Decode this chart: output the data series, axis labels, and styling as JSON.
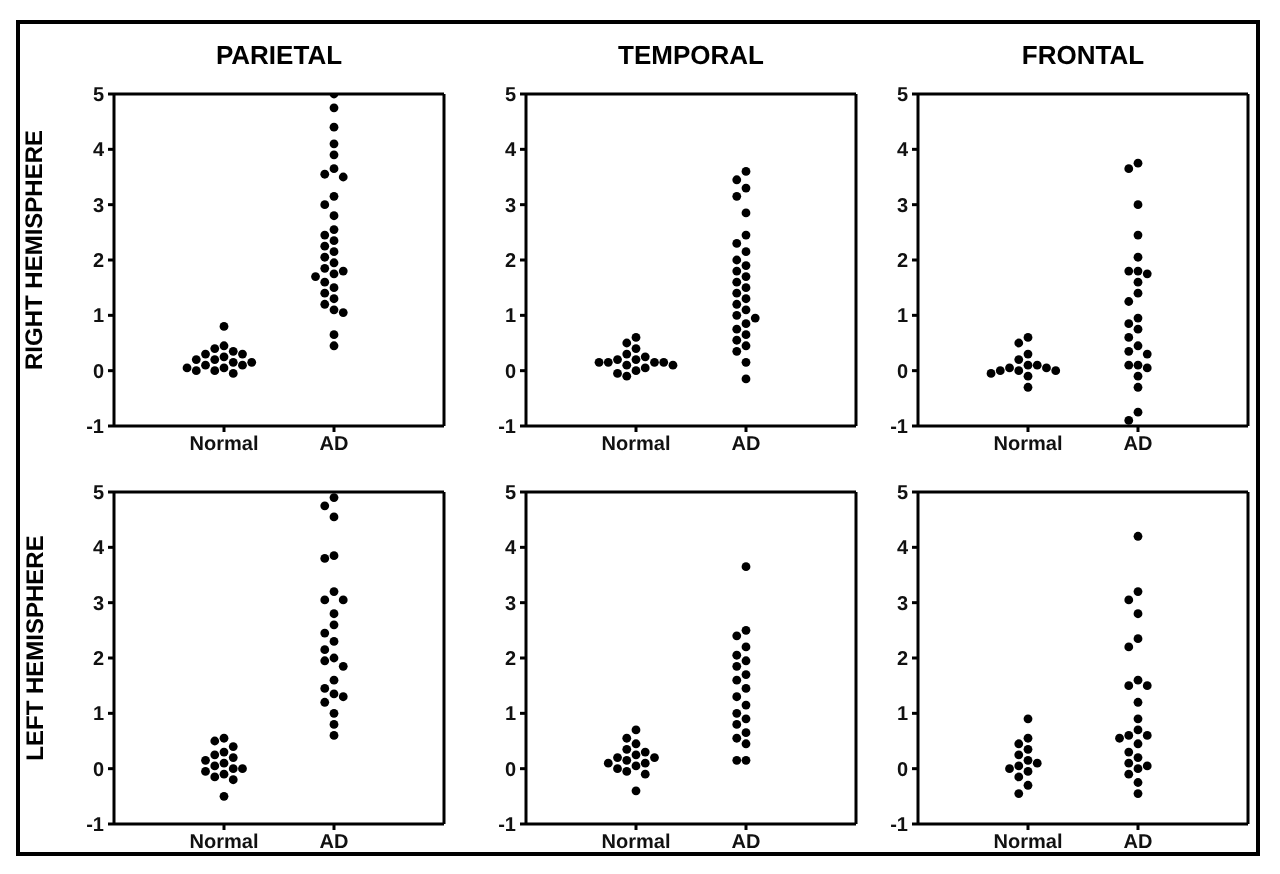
{
  "chart_data": [
    {
      "type": "scatter",
      "title": "PARIETAL",
      "ylabel": "RIGHT HEMISPHERE",
      "categories": [
        "Normal",
        "AD"
      ],
      "ylim": [
        -1,
        5
      ],
      "yticks": [
        -1,
        0,
        1,
        2,
        3,
        4,
        5
      ],
      "marker": "circle",
      "series": [
        {
          "type": "scatter",
          "color": "#000000",
          "x": [
            "Normal",
            "Normal",
            "Normal",
            "Normal",
            "Normal",
            "Normal",
            "Normal",
            "Normal",
            "Normal",
            "Normal",
            "Normal",
            "Normal",
            "Normal",
            "Normal",
            "Normal",
            "Normal",
            "Normal",
            "Normal"
          ],
          "values": [
            0.8,
            0.45,
            0.4,
            0.35,
            0.3,
            0.3,
            0.25,
            0.2,
            0.2,
            0.15,
            0.15,
            0.1,
            0.1,
            0.05,
            0.05,
            0,
            0,
            -0.05
          ]
        },
        {
          "type": "scatter",
          "color": "#000000",
          "x": [
            "AD",
            "AD",
            "AD",
            "AD",
            "AD",
            "AD",
            "AD",
            "AD",
            "AD",
            "AD",
            "AD",
            "AD",
            "AD",
            "AD",
            "AD",
            "AD",
            "AD",
            "AD",
            "AD",
            "AD",
            "AD",
            "AD",
            "AD",
            "AD",
            "AD",
            "AD",
            "AD",
            "AD",
            "AD",
            "AD",
            "AD"
          ],
          "values": [
            5,
            4.75,
            4.4,
            4.1,
            3.9,
            3.65,
            3.55,
            3.5,
            3.15,
            3,
            2.8,
            2.55,
            2.45,
            2.35,
            2.25,
            2.15,
            2.05,
            1.95,
            1.85,
            1.8,
            1.75,
            1.7,
            1.6,
            1.5,
            1.4,
            1.3,
            1.2,
            1.1,
            1.05,
            0.65,
            0.45
          ]
        }
      ]
    },
    {
      "type": "scatter",
      "title": "TEMPORAL",
      "categories": [
        "Normal",
        "AD"
      ],
      "ylim": [
        -1,
        5
      ],
      "yticks": [
        -1,
        0,
        1,
        2,
        3,
        4,
        5
      ],
      "marker": "circle",
      "series": [
        {
          "type": "scatter",
          "color": "#000000",
          "x": [
            "Normal",
            "Normal",
            "Normal",
            "Normal",
            "Normal",
            "Normal",
            "Normal",
            "Normal",
            "Normal",
            "Normal",
            "Normal",
            "Normal",
            "Normal",
            "Normal",
            "Normal",
            "Normal",
            "Normal"
          ],
          "values": [
            0.6,
            0.5,
            0.4,
            0.3,
            0.25,
            0.2,
            0.2,
            0.15,
            0.15,
            0.15,
            0.15,
            0.1,
            0.1,
            0.05,
            0,
            -0.05,
            -0.1
          ]
        },
        {
          "type": "scatter",
          "color": "#000000",
          "x": [
            "AD",
            "AD",
            "AD",
            "AD",
            "AD",
            "AD",
            "AD",
            "AD",
            "AD",
            "AD",
            "AD",
            "AD",
            "AD",
            "AD",
            "AD",
            "AD",
            "AD",
            "AD",
            "AD",
            "AD",
            "AD",
            "AD",
            "AD",
            "AD",
            "AD",
            "AD",
            "AD",
            "AD"
          ],
          "values": [
            3.6,
            3.45,
            3.3,
            3.15,
            2.85,
            2.45,
            2.3,
            2.15,
            2,
            1.9,
            1.8,
            1.7,
            1.6,
            1.5,
            1.4,
            1.3,
            1.2,
            1.1,
            1,
            0.95,
            0.85,
            0.75,
            0.65,
            0.55,
            0.45,
            0.35,
            0.15,
            -0.15
          ]
        }
      ]
    },
    {
      "type": "scatter",
      "title": "FRONTAL",
      "categories": [
        "Normal",
        "AD"
      ],
      "ylim": [
        -1,
        5
      ],
      "yticks": [
        -1,
        0,
        1,
        2,
        3,
        4,
        5
      ],
      "marker": "circle",
      "series": [
        {
          "type": "scatter",
          "color": "#000000",
          "x": [
            "Normal",
            "Normal",
            "Normal",
            "Normal",
            "Normal",
            "Normal",
            "Normal",
            "Normal",
            "Normal",
            "Normal",
            "Normal",
            "Normal",
            "Normal",
            "Normal"
          ],
          "values": [
            0.6,
            0.5,
            0.3,
            0.2,
            0.1,
            0.1,
            0.05,
            0.05,
            0,
            0,
            0,
            -0.05,
            -0.1,
            -0.3
          ]
        },
        {
          "type": "scatter",
          "color": "#000000",
          "x": [
            "AD",
            "AD",
            "AD",
            "AD",
            "AD",
            "AD",
            "AD",
            "AD",
            "AD",
            "AD",
            "AD",
            "AD",
            "AD",
            "AD",
            "AD",
            "AD",
            "AD",
            "AD",
            "AD",
            "AD",
            "AD",
            "AD",
            "AD",
            "AD",
            "AD"
          ],
          "values": [
            3.75,
            3.65,
            3,
            2.45,
            2.05,
            1.8,
            1.8,
            1.75,
            1.6,
            1.4,
            1.25,
            0.95,
            0.85,
            0.75,
            0.6,
            0.45,
            0.35,
            0.3,
            0.1,
            0.1,
            0.05,
            -0.1,
            -0.3,
            -0.75,
            -0.9
          ]
        }
      ]
    },
    {
      "type": "scatter",
      "ylabel": "LEFT HEMISPHERE",
      "categories": [
        "Normal",
        "AD"
      ],
      "ylim": [
        -1,
        5
      ],
      "yticks": [
        -1,
        0,
        1,
        2,
        3,
        4,
        5
      ],
      "marker": "circle",
      "series": [
        {
          "type": "scatter",
          "color": "#000000",
          "x": [
            "Normal",
            "Normal",
            "Normal",
            "Normal",
            "Normal",
            "Normal",
            "Normal",
            "Normal",
            "Normal",
            "Normal",
            "Normal",
            "Normal",
            "Normal",
            "Normal",
            "Normal",
            "Normal"
          ],
          "values": [
            0.55,
            0.5,
            0.4,
            0.3,
            0.25,
            0.2,
            0.15,
            0.1,
            0.05,
            0,
            0,
            -0.05,
            -0.1,
            -0.15,
            -0.2,
            -0.5
          ]
        },
        {
          "type": "scatter",
          "color": "#000000",
          "x": [
            "AD",
            "AD",
            "AD",
            "AD",
            "AD",
            "AD",
            "AD",
            "AD",
            "AD",
            "AD",
            "AD",
            "AD",
            "AD",
            "AD",
            "AD",
            "AD",
            "AD",
            "AD",
            "AD",
            "AD",
            "AD",
            "AD",
            "AD",
            "AD"
          ],
          "values": [
            4.9,
            4.75,
            4.55,
            3.85,
            3.8,
            3.2,
            3.05,
            3.05,
            2.8,
            2.6,
            2.45,
            2.3,
            2.15,
            2,
            1.95,
            1.85,
            1.6,
            1.45,
            1.35,
            1.3,
            1.2,
            1,
            0.8,
            0.6
          ]
        }
      ]
    },
    {
      "type": "scatter",
      "categories": [
        "Normal",
        "AD"
      ],
      "ylim": [
        -1,
        5
      ],
      "yticks": [
        -1,
        0,
        1,
        2,
        3,
        4,
        5
      ],
      "marker": "circle",
      "series": [
        {
          "type": "scatter",
          "color": "#000000",
          "x": [
            "Normal",
            "Normal",
            "Normal",
            "Normal",
            "Normal",
            "Normal",
            "Normal",
            "Normal",
            "Normal",
            "Normal",
            "Normal",
            "Normal",
            "Normal",
            "Normal",
            "Normal",
            "Normal"
          ],
          "values": [
            0.7,
            0.55,
            0.45,
            0.35,
            0.3,
            0.25,
            0.2,
            0.2,
            0.15,
            0.1,
            0.1,
            0.05,
            0,
            -0.05,
            -0.1,
            -0.4
          ]
        },
        {
          "type": "scatter",
          "color": "#000000",
          "x": [
            "AD",
            "AD",
            "AD",
            "AD",
            "AD",
            "AD",
            "AD",
            "AD",
            "AD",
            "AD",
            "AD",
            "AD",
            "AD",
            "AD",
            "AD",
            "AD",
            "AD",
            "AD",
            "AD",
            "AD"
          ],
          "values": [
            3.65,
            2.5,
            2.4,
            2.2,
            2.05,
            1.95,
            1.85,
            1.7,
            1.6,
            1.45,
            1.3,
            1.15,
            1,
            0.9,
            0.8,
            0.65,
            0.55,
            0.45,
            0.15,
            0.15
          ]
        }
      ]
    },
    {
      "type": "scatter",
      "categories": [
        "Normal",
        "AD"
      ],
      "ylim": [
        -1,
        5
      ],
      "yticks": [
        -1,
        0,
        1,
        2,
        3,
        4,
        5
      ],
      "marker": "circle",
      "series": [
        {
          "type": "scatter",
          "color": "#000000",
          "x": [
            "Normal",
            "Normal",
            "Normal",
            "Normal",
            "Normal",
            "Normal",
            "Normal",
            "Normal",
            "Normal",
            "Normal",
            "Normal",
            "Normal",
            "Normal"
          ],
          "values": [
            0.9,
            0.55,
            0.45,
            0.35,
            0.25,
            0.15,
            0.1,
            0.05,
            0,
            -0.05,
            -0.15,
            -0.3,
            -0.45
          ]
        },
        {
          "type": "scatter",
          "color": "#000000",
          "x": [
            "AD",
            "AD",
            "AD",
            "AD",
            "AD",
            "AD",
            "AD",
            "AD",
            "AD",
            "AD",
            "AD",
            "AD",
            "AD",
            "AD",
            "AD",
            "AD",
            "AD",
            "AD",
            "AD",
            "AD",
            "AD",
            "AD",
            "AD",
            "AD"
          ],
          "values": [
            4.2,
            3.2,
            3.05,
            2.8,
            2.35,
            2.2,
            1.6,
            1.5,
            1.5,
            1.2,
            0.9,
            0.7,
            0.6,
            0.6,
            0.55,
            0.45,
            0.3,
            0.2,
            0.1,
            0.05,
            0,
            -0.1,
            -0.25,
            -0.45
          ]
        }
      ]
    }
  ]
}
